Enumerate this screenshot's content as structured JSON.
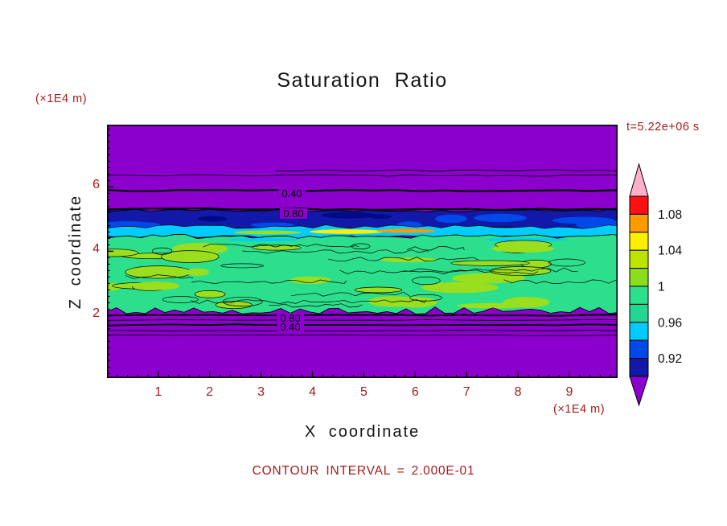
{
  "title": "Saturation Ratio",
  "time_label": "t=5.22e+06 s",
  "contour_note": "CONTOUR INTERVAL = 2.000E-01",
  "axes": {
    "x_label": "X coordinate",
    "y_label": "Z coordinate",
    "x_unit": "(×1E4 m)",
    "y_unit": "(×1E4 m)",
    "x_ticks": [
      "1",
      "2",
      "3",
      "4",
      "5",
      "6",
      "7",
      "8",
      "9"
    ],
    "y_ticks": [
      "6",
      "4",
      "2"
    ]
  },
  "contour_labels": [
    {
      "text": "0.40",
      "pos": "upper"
    },
    {
      "text": "0.80",
      "pos": "upper"
    },
    {
      "text": "0.80",
      "pos": "lower"
    },
    {
      "text": "0.40",
      "pos": "lower"
    }
  ],
  "colors": {
    "purple": "#8b00cc",
    "navy": "#1218a8",
    "blue": "#0048e8",
    "cyan": "#00ccff",
    "green": "#2cdf8c",
    "yellow_green": "#9ade1e",
    "yellow": "#ffee00",
    "orange": "#ff9a00",
    "frame": "#000000",
    "annotation_red": "#a81b1b"
  },
  "colorbar": {
    "top_color": "#ffb0c8",
    "bottom_color": "#8b00cc",
    "segment_colors": [
      "#ff1010",
      "#ff9a00",
      "#ffee00",
      "#bce400",
      "#8ade1e",
      "#2cdf8c",
      "#24d695",
      "#00ccff",
      "#0048e8",
      "#1218a8"
    ],
    "tick_labels": [
      {
        "text": "1.08",
        "edge": 1
      },
      {
        "text": "1.04",
        "edge": 3
      },
      {
        "text": "1",
        "edge": 5
      },
      {
        "text": "0.96",
        "edge": 7
      },
      {
        "text": "0.92",
        "edge": 9
      }
    ]
  },
  "chart_data": {
    "type": "heatmap",
    "title": "Saturation Ratio",
    "xlabel": "X coordinate (×1E4 m)",
    "ylabel": "Z coordinate (×1E4 m)",
    "x_range": [
      0,
      10
    ],
    "z_range": [
      0,
      8
    ],
    "time_annotation": "t=5.22e+06 s",
    "contour_interval": 0.2,
    "colorbar_levels": [
      0.92,
      0.96,
      1,
      1.04,
      1.08
    ],
    "labeled_contours_upper_z": {
      "0.40": 5.55,
      "0.80": 5.25
    },
    "labeled_contours_lower_z": {
      "0.80": 2.05,
      "0.40": 1.9
    },
    "field_bands": [
      {
        "z_from": 5.6,
        "z_to": 8.0,
        "saturation_ratio": "< 0.2 (off-scale low, purple)"
      },
      {
        "z_from": 5.3,
        "z_to": 5.6,
        "saturation_ratio": "0.2-0.8 sharp gradient with labeled contours 0.40 and 0.80"
      },
      {
        "z_from": 4.95,
        "z_to": 5.3,
        "saturation_ratio": "0.90-0.94 (dark blue band with royal-blue patches)"
      },
      {
        "z_from": 4.8,
        "z_to": 4.95,
        "saturation_ratio": "0.94-0.98 (cyan band), local maxima 1.04-1.08 yellow/orange streaks near x = 4-6.5"
      },
      {
        "z_from": 2.1,
        "z_to": 4.8,
        "saturation_ratio": "0.98-1.02 mottled field (green with yellow-green patches and many closed contour filaments)"
      },
      {
        "z_from": 1.85,
        "z_to": 2.1,
        "saturation_ratio": "0.8-0.4 sharp gradient with labeled contours 0.80 and 0.40"
      },
      {
        "z_from": 0.0,
        "z_to": 1.85,
        "saturation_ratio": "< 0.2 (off-scale low, purple)"
      }
    ]
  }
}
